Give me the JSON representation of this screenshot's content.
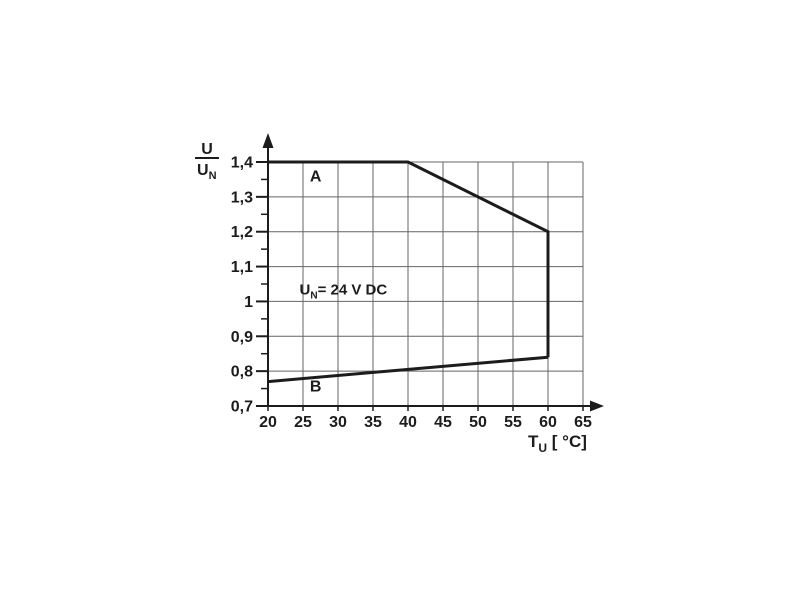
{
  "page": {
    "background": "#ffffff"
  },
  "chart_data": {
    "type": "line",
    "title": "",
    "x_axis": {
      "label_base": "T",
      "label_sub": "U",
      "label_unit": " [ °C]",
      "min": 20,
      "max": 65,
      "ticks": [
        20,
        25,
        30,
        35,
        40,
        45,
        50,
        55,
        60,
        65
      ],
      "tick_labels": [
        "20",
        "25",
        "30",
        "35",
        "40",
        "45",
        "50",
        "55",
        "60",
        "65"
      ],
      "arrow": true
    },
    "y_axis": {
      "label_numerator": "U",
      "label_denominator_base": "U",
      "label_denominator_sub": "N",
      "min": 0.7,
      "max": 1.4,
      "major_ticks": [
        0.7,
        0.8,
        0.9,
        1.0,
        1.1,
        1.2,
        1.3,
        1.4
      ],
      "tick_labels": [
        "0,7",
        "0,8",
        "0,9",
        "1",
        "1,1",
        "1,2",
        "1,3",
        "1,4"
      ],
      "minor_tick_step": 0.05,
      "arrow": true
    },
    "grid": true,
    "series": [
      {
        "name": "A",
        "label": "A",
        "label_pos": [
          26.8,
          1.36
        ],
        "points": [
          [
            20,
            1.4
          ],
          [
            40,
            1.4
          ],
          [
            60,
            1.2
          ],
          [
            60,
            0.84
          ]
        ]
      },
      {
        "name": "B",
        "label": "B",
        "label_pos": [
          26.8,
          0.757
        ],
        "points": [
          [
            20,
            0.77
          ],
          [
            60,
            0.84
          ]
        ]
      }
    ],
    "annotation": {
      "text_base": "U",
      "text_sub": "N",
      "text_rest": "= 24 V DC",
      "pos": [
        24.5,
        1.02
      ]
    },
    "colors": {
      "curve": "#1c1c1c",
      "grid": "#646464",
      "axis": "#1c1c1c",
      "text": "#1c1c1c",
      "background": "#ffffff"
    }
  }
}
